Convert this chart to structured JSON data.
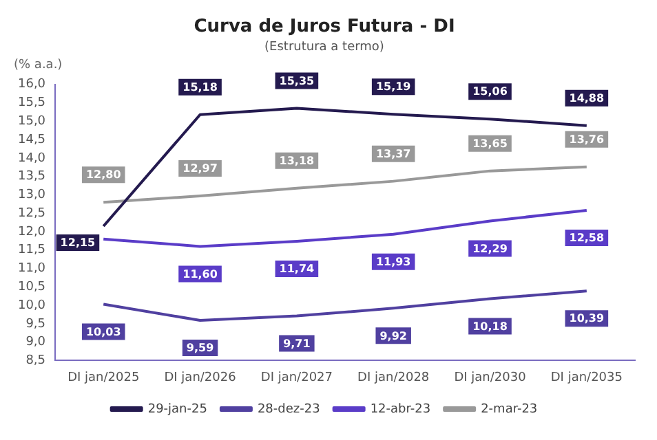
{
  "chart_data": {
    "type": "line",
    "title": "Curva de Juros Futura - DI",
    "subtitle": "(Estrutura a termo)",
    "ylabel": "(% a.a.)",
    "categories": [
      "DI jan/2025",
      "DI jan/2026",
      "DI jan/2027",
      "DI jan/2028",
      "DI jan/2030",
      "DI jan/2035"
    ],
    "series": [
      {
        "name": "29-jan-25",
        "color": "#241a4f",
        "values": [
          12.15,
          15.18,
          15.35,
          15.19,
          15.06,
          14.88
        ],
        "value_labels": [
          "12,15",
          "15,18",
          "15,35",
          "15,19",
          "15,06",
          "14,88"
        ]
      },
      {
        "name": "28-dez-23",
        "color": "#5040a0",
        "values": [
          10.03,
          9.59,
          9.71,
          9.92,
          10.18,
          10.39
        ],
        "value_labels": [
          "10,03",
          "9,59",
          "9,71",
          "9,92",
          "10,18",
          "10,39"
        ]
      },
      {
        "name": "12-abr-23",
        "color": "#5a3cc8",
        "values": [
          11.8,
          11.6,
          11.74,
          11.93,
          12.29,
          12.58
        ],
        "value_labels": [
          null,
          "11,60",
          "11,74",
          "11,93",
          "12,29",
          "12,58"
        ]
      },
      {
        "name": "2-mar-23",
        "color": "#999999",
        "values": [
          12.8,
          12.97,
          13.18,
          13.37,
          13.65,
          13.76
        ],
        "value_labels": [
          "12,80",
          "12,97",
          "13,18",
          "13,37",
          "13,65",
          "13,76"
        ]
      }
    ],
    "ylim": [
      8.5,
      16
    ],
    "yticks": [
      {
        "value": 8.5,
        "label": "8,5"
      },
      {
        "value": 9,
        "label": "9,0"
      },
      {
        "value": 9.5,
        "label": "9,5"
      },
      {
        "value": 10,
        "label": "10,0"
      },
      {
        "value": 10.5,
        "label": "10,5"
      },
      {
        "value": 11,
        "label": "11,0"
      },
      {
        "value": 11.5,
        "label": "11,5"
      },
      {
        "value": 12,
        "label": "12,0"
      },
      {
        "value": 12.5,
        "label": "12,5"
      },
      {
        "value": 13,
        "label": "13,0"
      },
      {
        "value": 13.5,
        "label": "13,5"
      },
      {
        "value": 14,
        "label": "14,0"
      },
      {
        "value": 14.5,
        "label": "14,5"
      },
      {
        "value": 15,
        "label": "15,0"
      },
      {
        "value": 15.5,
        "label": "15,5"
      },
      {
        "value": 16,
        "label": "16,0"
      }
    ],
    "grid": false,
    "legend": "bottom",
    "marker": "none",
    "line_style": "solid"
  }
}
